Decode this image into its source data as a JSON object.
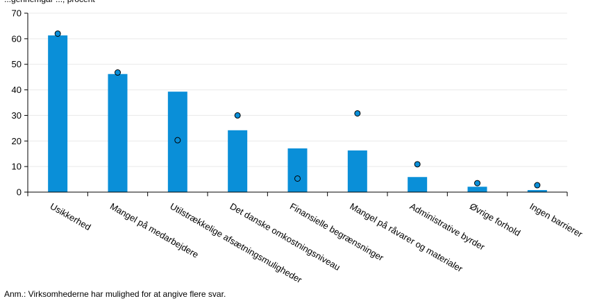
{
  "chart_data": {
    "type": "bar",
    "title_visible_fragment": "...gennemgår ..., procent",
    "categories": [
      "Usikkerhed",
      "Mangel på medarbejdere",
      "Utilstrækkelige afsætningsmuligheder",
      "Det danske omkostningsniveau",
      "Finansielle begrænsninger",
      "Mangel på råvarer og materialer",
      "Administrative byrder",
      "Øvrige forhold",
      "Ingen barrierer"
    ],
    "series": [
      {
        "type": "bar",
        "values": [
          61.3,
          46.2,
          39.3,
          24.2,
          17.1,
          16.3,
          5.9,
          2.1,
          0.8
        ],
        "color": "#0a8fd8"
      },
      {
        "type": "dot",
        "values": [
          62,
          46.8,
          20.3,
          30,
          5.3,
          30.8,
          10.9,
          3.5,
          2.7
        ],
        "color": "#0a8fd8"
      }
    ],
    "ylim": [
      0,
      70
    ],
    "yticks": [
      0,
      10,
      20,
      30,
      40,
      50,
      60,
      70
    ],
    "grid": true,
    "legend": "none"
  },
  "note": "Anm.: Virksomhederne har mulighed for at angive flere svar."
}
